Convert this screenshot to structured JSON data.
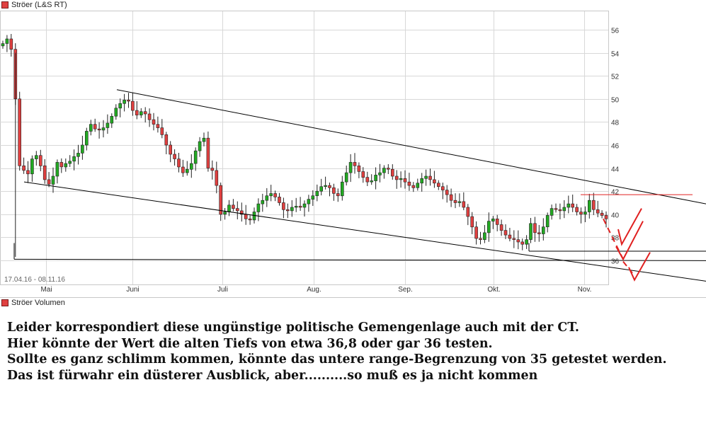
{
  "price_panel": {
    "legend": "Ströer (L&S RT)",
    "date_range_label": "17.04.16 - 08.11.16"
  },
  "volume_panel": {
    "legend": "Ströer Volumen"
  },
  "commentary": [
    "Leider korrespondiert diese ungünstige politische Gemengenlage auch mit der CT.",
    "Hier könnte der Wert die alten Tiefs von etwa 36,8 oder gar 36 testen.",
    "Sollte es ganz schlimm kommen, könnte das untere range-Begrenzung von 35 getestet werden.",
    "Das ist fürwahr ein düsterer Ausblick, aber..........so muß es ja nicht kommen"
  ],
  "colors": {
    "up_candle": "#22aa22",
    "down_candle": "#e04040",
    "annotation_red": "#e02020",
    "trendline": "#000000",
    "grid": "#d8d8d8"
  },
  "chart_data": {
    "type": "candlestick",
    "title": "Ströer (L&S RT)",
    "period": "17.04.16 - 08.11.16",
    "x_ticks": [
      "Mai",
      "Juni",
      "Juli",
      "Aug.",
      "Sep.",
      "Okt.",
      "Nov."
    ],
    "y_ticks": [
      36,
      38,
      40,
      42,
      44,
      46,
      48,
      50,
      52,
      54,
      56
    ],
    "ylim": [
      34.8,
      57
    ],
    "grid": true,
    "closes_approx": [
      54.8,
      55.2,
      54.3,
      50.0,
      44.2,
      43.8,
      43.5,
      44.8,
      45.1,
      44.2,
      43.0,
      42.6,
      43.3,
      44.5,
      44.1,
      44.4,
      44.6,
      45.0,
      45.3,
      46.0,
      47.2,
      47.8,
      47.4,
      47.3,
      47.5,
      47.9,
      48.5,
      49.2,
      49.6,
      49.9,
      49.8,
      49.0,
      48.6,
      48.9,
      48.7,
      48.2,
      47.8,
      47.5,
      46.9,
      46.0,
      45.2,
      44.8,
      44.1,
      43.6,
      43.9,
      44.4,
      45.5,
      46.3,
      46.6,
      44.0,
      43.8,
      42.5,
      40.0,
      40.2,
      40.8,
      40.5,
      40.3,
      40.0,
      39.6,
      39.5,
      40.2,
      40.9,
      41.2,
      41.6,
      41.8,
      41.5,
      41.0,
      40.4,
      40.3,
      40.6,
      40.7,
      40.6,
      40.9,
      41.3,
      41.6,
      42.0,
      42.4,
      42.5,
      42.3,
      41.8,
      41.6,
      42.8,
      43.6,
      44.5,
      44.2,
      43.7,
      43.2,
      42.8,
      42.9,
      43.4,
      43.6,
      44.0,
      43.9,
      43.3,
      43.0,
      43.1,
      42.8,
      42.5,
      42.3,
      42.7,
      43.1,
      43.3,
      43.0,
      42.7,
      42.4,
      42.1,
      41.7,
      41.2,
      41.0,
      41.1,
      40.6,
      39.8,
      38.9,
      37.9,
      37.8,
      38.4,
      39.4,
      39.6,
      39.1,
      38.6,
      38.2,
      37.9,
      37.8,
      37.6,
      37.4,
      37.8,
      39.2,
      38.4,
      38.3,
      38.9,
      39.9,
      40.5,
      40.4,
      40.3,
      40.6,
      40.9,
      40.6,
      40.2,
      40.0,
      40.2,
      41.2,
      40.4,
      40.1,
      39.9,
      39.6
    ],
    "annotations": [
      {
        "type": "trendline",
        "label": "upper channel line",
        "from": [
          "end of May",
          50.8
        ],
        "to": [
          "mid Nov.",
          40.9
        ]
      },
      {
        "type": "trendline",
        "label": "lower channel line",
        "from": [
          "end of April",
          42.8
        ],
        "to": [
          "mid Nov.",
          34.2
        ]
      },
      {
        "type": "hline",
        "level": 36.1,
        "label": "old low 36"
      },
      {
        "type": "hline",
        "level": 36.8,
        "label": "old low 36,8"
      },
      {
        "type": "hline",
        "level": 41.7,
        "color": "red"
      },
      {
        "type": "projection",
        "color": "red",
        "path_levels": [
          39.6,
          36.1,
          38.3,
          34.6
        ]
      }
    ]
  }
}
